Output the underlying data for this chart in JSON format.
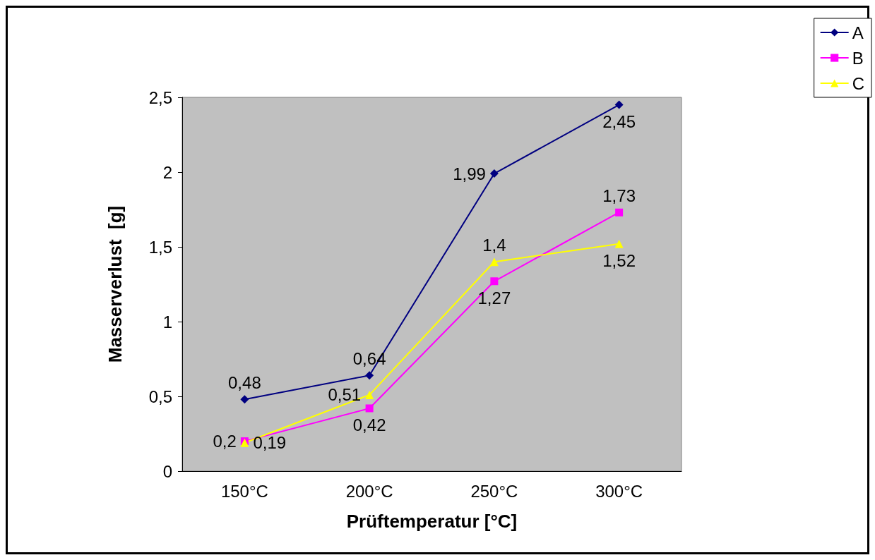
{
  "chart_data": {
    "type": "line",
    "xlabel": "Prüftemperatur [°C]",
    "ylabel": "Masserverlust  [g]",
    "categories": [
      "150°C",
      "200°C",
      "250°C",
      "300°C"
    ],
    "series": [
      {
        "name": "A",
        "color": "#000080",
        "marker": "diamond",
        "values": [
          0.48,
          0.64,
          1.99,
          2.45
        ],
        "value_labels": [
          "0,48",
          "0,64",
          "1,99",
          "2,45"
        ]
      },
      {
        "name": "B",
        "color": "#ff00ff",
        "marker": "square",
        "values": [
          0.2,
          0.42,
          1.27,
          1.73
        ],
        "value_labels": [
          "0,2",
          "0,42",
          "1,27",
          "1,73"
        ]
      },
      {
        "name": "C",
        "color": "#ffff00",
        "marker": "triangle",
        "values": [
          0.19,
          0.51,
          1.4,
          1.52
        ],
        "value_labels": [
          "0,19",
          "0,51",
          "1,4",
          "1,52"
        ]
      }
    ],
    "ylim": [
      0,
      2.5
    ],
    "yticks": [
      0,
      {
        "value": 0.5,
        "label": "0,5"
      },
      1,
      {
        "value": 1.5,
        "label": "1,5"
      },
      2,
      {
        "value": 2.5,
        "label": "2,5"
      }
    ],
    "grid": false,
    "legend": "top right"
  }
}
